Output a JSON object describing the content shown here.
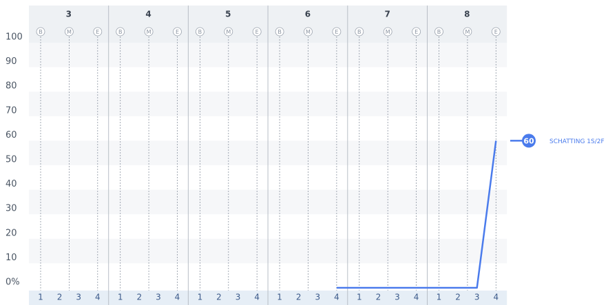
{
  "chart_data": {
    "type": "line",
    "groups": [
      "3",
      "4",
      "5",
      "6",
      "7",
      "8"
    ],
    "markers": [
      "B",
      "M",
      "E"
    ],
    "categories": [
      "1",
      "2",
      "3",
      "4",
      "1",
      "2",
      "3",
      "4",
      "1",
      "2",
      "3",
      "4",
      "1",
      "2",
      "3",
      "4",
      "1",
      "2",
      "3",
      "4",
      "1",
      "2",
      "3",
      "4"
    ],
    "series": [
      {
        "name": "SCHATTING 1S/2F",
        "color": "#4a7bec",
        "values": [
          null,
          null,
          null,
          null,
          null,
          null,
          null,
          null,
          null,
          null,
          null,
          null,
          null,
          null,
          null,
          0,
          0,
          0,
          0,
          0,
          0,
          0,
          0,
          60
        ],
        "value_label": "60"
      }
    ],
    "ylim": [
      0,
      100
    ],
    "yticks": [
      {
        "value": 0,
        "label": "0%"
      },
      10,
      20,
      30,
      40,
      50,
      60,
      70,
      80,
      90,
      100
    ],
    "grid": "striped"
  }
}
